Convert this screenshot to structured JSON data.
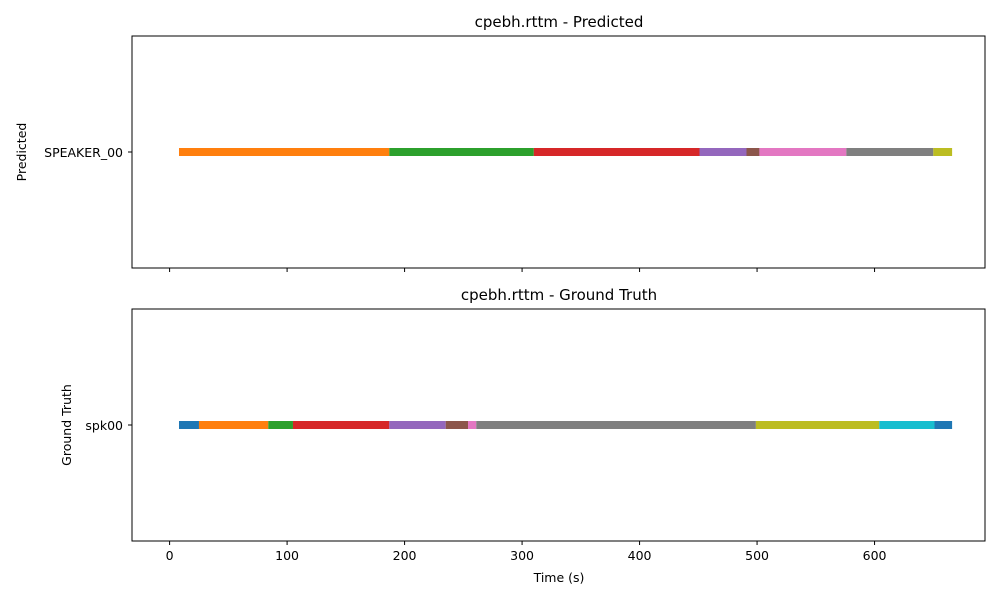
{
  "chart_data": [
    {
      "type": "timeline",
      "title": "cpebh.rttm - Predicted",
      "ylabel": "Predicted",
      "xlabel": "",
      "xlim": [
        -32,
        694
      ],
      "xticks": [
        0,
        100,
        200,
        300,
        400,
        500,
        600
      ],
      "show_xtick_labels": false,
      "speaker": "SPEAKER_00",
      "segments": [
        {
          "start": 8,
          "end": 187,
          "color": "#ff7f0e"
        },
        {
          "start": 187,
          "end": 310,
          "color": "#2ca02c"
        },
        {
          "start": 310,
          "end": 451,
          "color": "#d62728"
        },
        {
          "start": 451,
          "end": 491,
          "color": "#9467bd"
        },
        {
          "start": 491,
          "end": 502,
          "color": "#8c564b"
        },
        {
          "start": 502,
          "end": 576,
          "color": "#e377c2"
        },
        {
          "start": 576,
          "end": 650,
          "color": "#7f7f7f"
        },
        {
          "start": 650,
          "end": 666,
          "color": "#bcbd22"
        }
      ]
    },
    {
      "type": "timeline",
      "title": "cpebh.rttm - Ground Truth",
      "ylabel": "Ground Truth",
      "xlabel": "Time (s)",
      "xlim": [
        -32,
        694
      ],
      "xticks": [
        0,
        100,
        200,
        300,
        400,
        500,
        600
      ],
      "show_xtick_labels": true,
      "speaker": "spk00",
      "segments": [
        {
          "start": 8,
          "end": 25,
          "color": "#1f77b4"
        },
        {
          "start": 25,
          "end": 84,
          "color": "#ff7f0e"
        },
        {
          "start": 84,
          "end": 105,
          "color": "#2ca02c"
        },
        {
          "start": 105,
          "end": 187,
          "color": "#d62728"
        },
        {
          "start": 187,
          "end": 235,
          "color": "#9467bd"
        },
        {
          "start": 235,
          "end": 254,
          "color": "#8c564b"
        },
        {
          "start": 254,
          "end": 261,
          "color": "#e377c2"
        },
        {
          "start": 261,
          "end": 499,
          "color": "#7f7f7f"
        },
        {
          "start": 499,
          "end": 604,
          "color": "#bcbd22"
        },
        {
          "start": 604,
          "end": 651,
          "color": "#17becf"
        },
        {
          "start": 651,
          "end": 666,
          "color": "#1f77b4"
        }
      ]
    }
  ]
}
